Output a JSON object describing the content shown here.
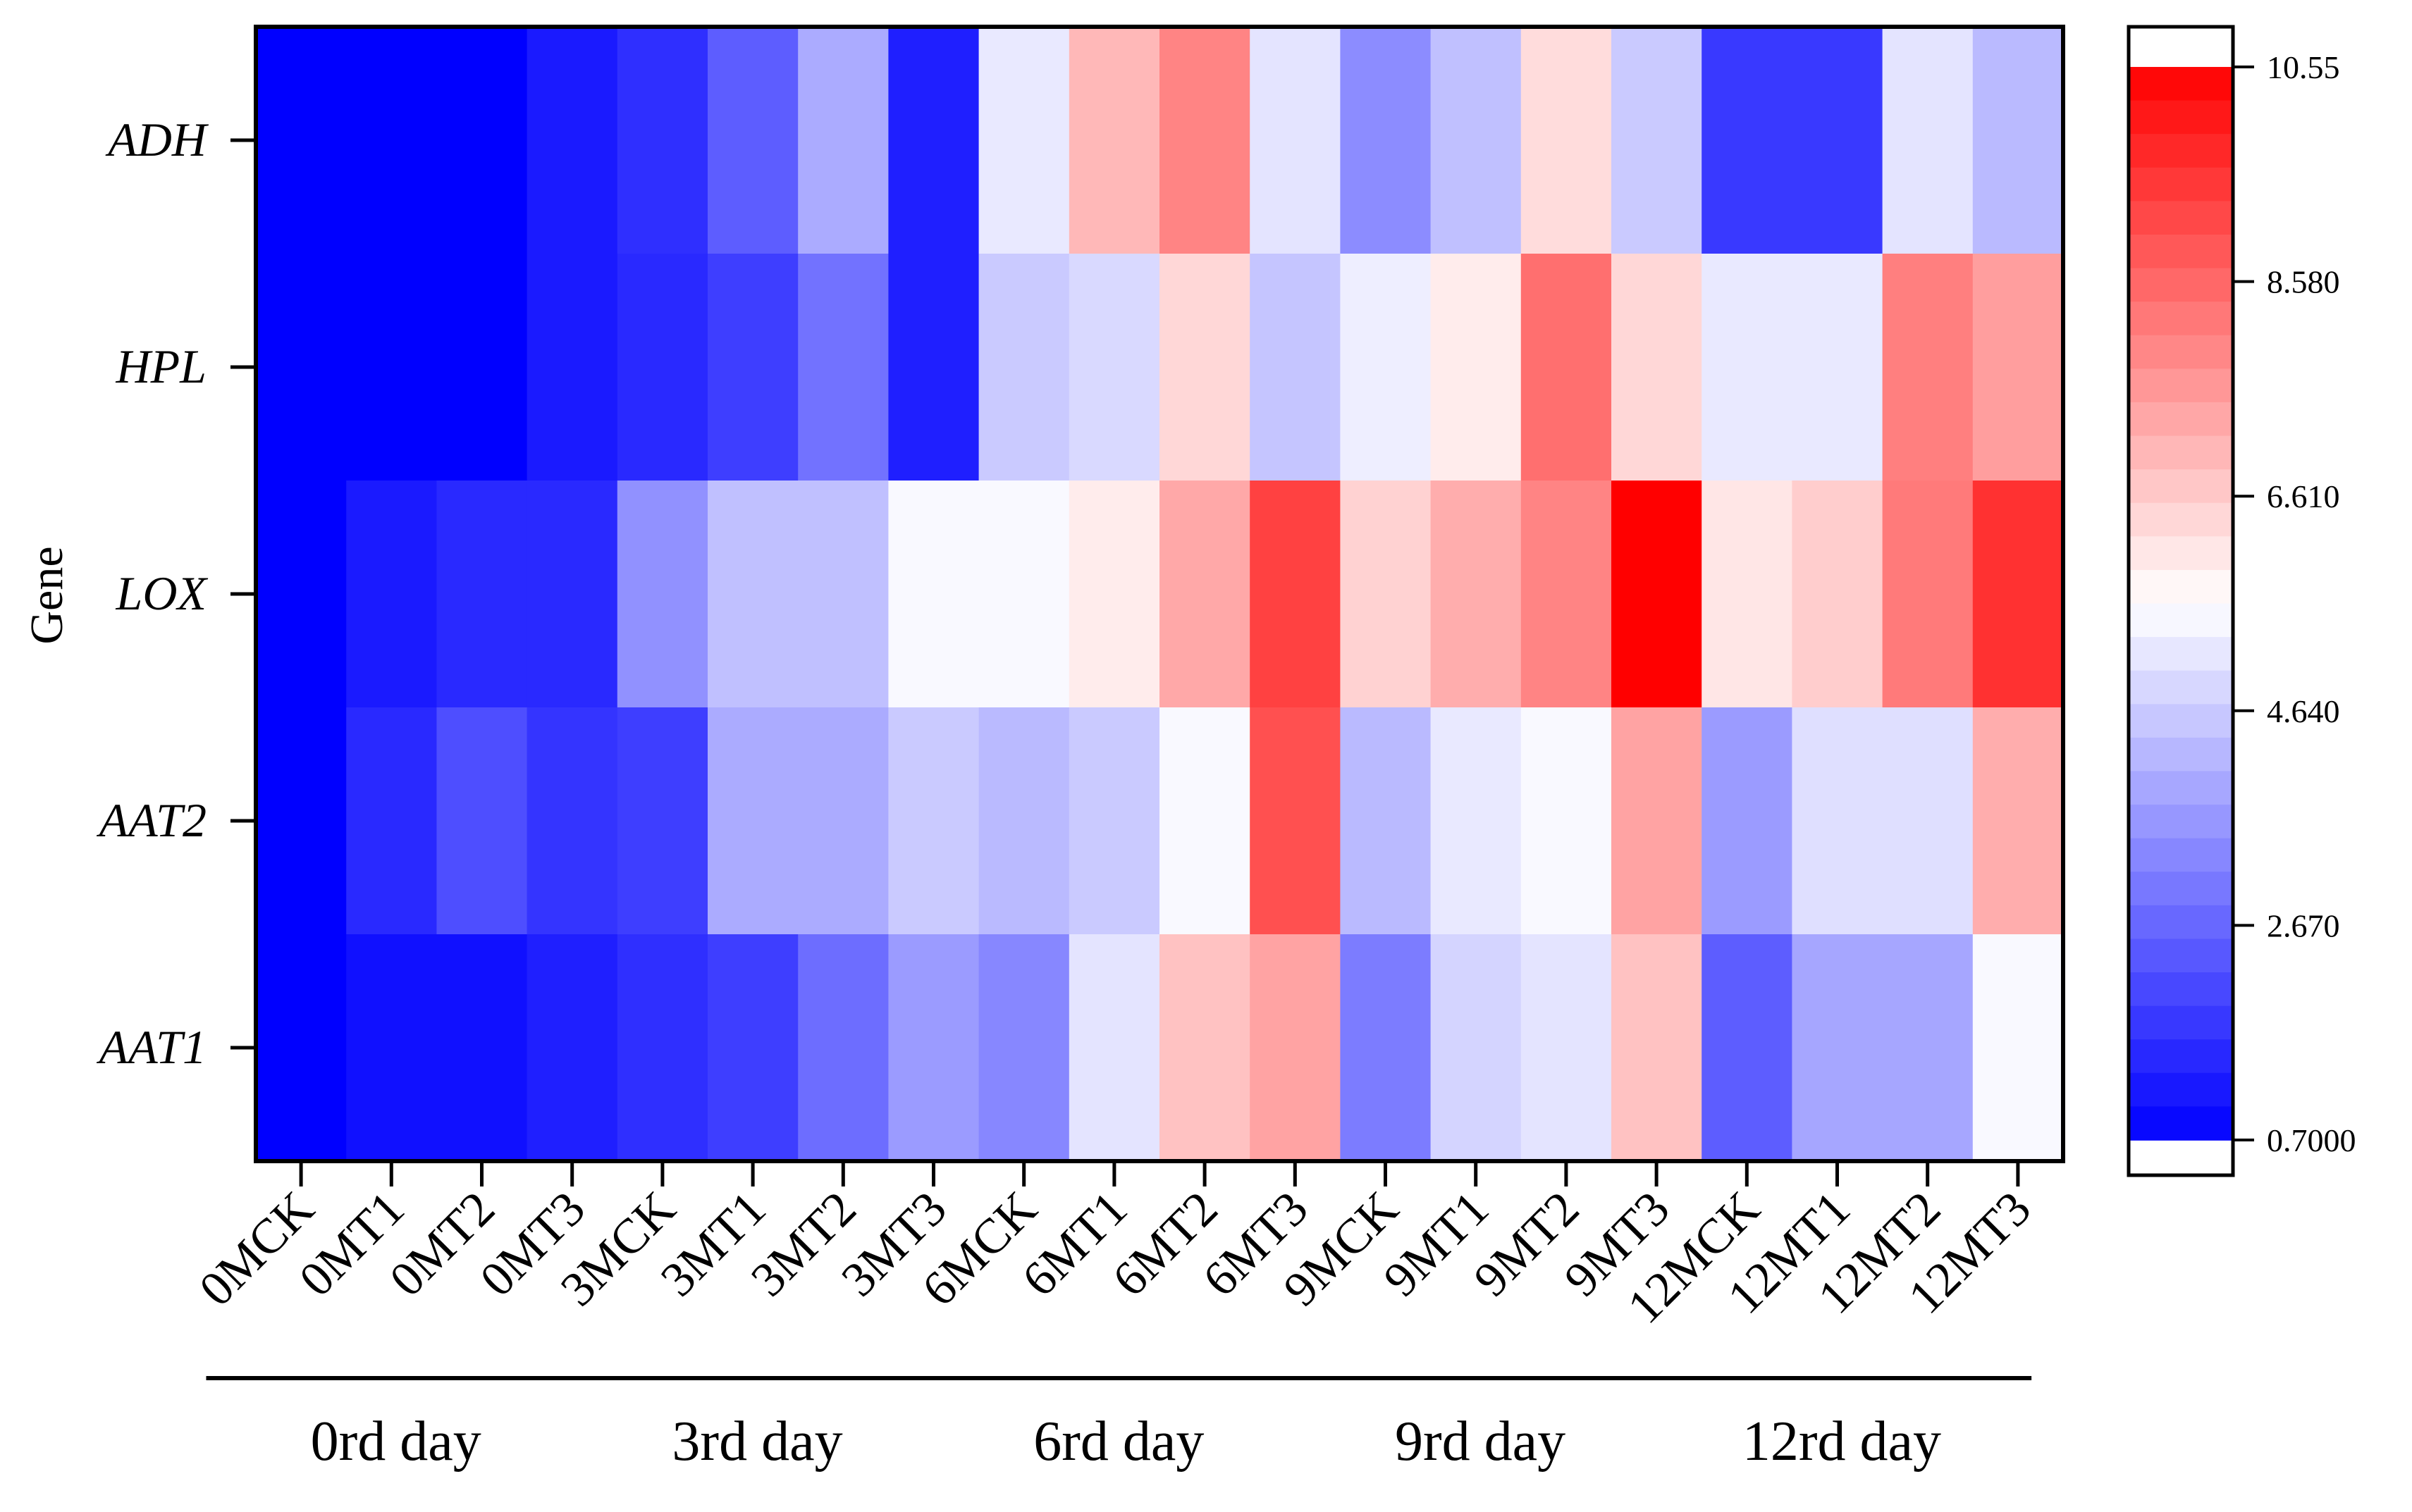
{
  "chart_data": {
    "type": "heatmap",
    "title": "",
    "ylabel": "Gene",
    "xlabel": "",
    "rows": [
      "ADH",
      "HPL",
      "LOX",
      "AAT2",
      "AAT1"
    ],
    "columns": [
      "0MCK",
      "0MT1",
      "0MT2",
      "0MT3",
      "3MCK",
      "3MT1",
      "3MT2",
      "3MT3",
      "6MCK",
      "6MT1",
      "6MT2",
      "6MT3",
      "9MCK",
      "9MT1",
      "9MT2",
      "9MT3",
      "12MCK",
      "12MT1",
      "12MT2",
      "12MT3"
    ],
    "groups": [
      {
        "label": "0rd day",
        "columns": [
          "0MCK",
          "0MT1",
          "0MT2",
          "0MT3"
        ]
      },
      {
        "label": "3rd day",
        "columns": [
          "3MCK",
          "3MT1",
          "3MT2",
          "3MT3"
        ]
      },
      {
        "label": "6rd day",
        "columns": [
          "6MCK",
          "6MT1",
          "6MT2",
          "6MT3"
        ]
      },
      {
        "label": "9rd day",
        "columns": [
          "9MCK",
          "9MT1",
          "9MT2",
          "9MT3"
        ]
      },
      {
        "label": "12rd day",
        "columns": [
          "12MCK",
          "12MT1",
          "12MT2",
          "12MT3"
        ]
      }
    ],
    "values": [
      [
        0.7,
        0.7,
        0.7,
        1.2,
        1.6,
        2.5,
        4.0,
        1.3,
        5.2,
        7.0,
        8.0,
        5.1,
        3.4,
        4.4,
        6.3,
        4.6,
        1.8,
        1.8,
        5.1,
        4.3
      ],
      [
        0.7,
        0.7,
        0.7,
        1.2,
        1.5,
        1.9,
        2.9,
        1.3,
        4.6,
        4.9,
        6.4,
        4.5,
        5.3,
        6.0,
        8.4,
        6.4,
        5.2,
        5.2,
        8.1,
        7.5
      ],
      [
        0.7,
        1.2,
        1.5,
        1.5,
        3.5,
        4.4,
        4.4,
        5.5,
        5.5,
        6.0,
        7.3,
        9.3,
        6.5,
        7.2,
        8.0,
        10.55,
        6.1,
        6.6,
        8.2,
        9.6
      ],
      [
        0.7,
        1.5,
        2.2,
        1.7,
        1.9,
        4.0,
        4.0,
        4.6,
        4.3,
        4.6,
        5.5,
        9.0,
        4.3,
        5.2,
        5.5,
        7.4,
        3.7,
        5.0,
        5.0,
        7.2
      ],
      [
        0.7,
        1.0,
        1.0,
        1.3,
        1.6,
        1.9,
        2.8,
        3.7,
        3.3,
        5.1,
        6.8,
        7.4,
        3.1,
        4.8,
        5.1,
        6.8,
        2.5,
        3.9,
        3.9,
        5.5
      ]
    ],
    "colorbar": {
      "min": 0.7,
      "max": 10.55,
      "ticks": [
        "0.7000",
        "2.670",
        "4.640",
        "6.610",
        "8.580",
        "10.55"
      ],
      "colors": {
        "low": "#0000ff",
        "mid": "#ffffff",
        "high": "#ff0000"
      }
    }
  }
}
